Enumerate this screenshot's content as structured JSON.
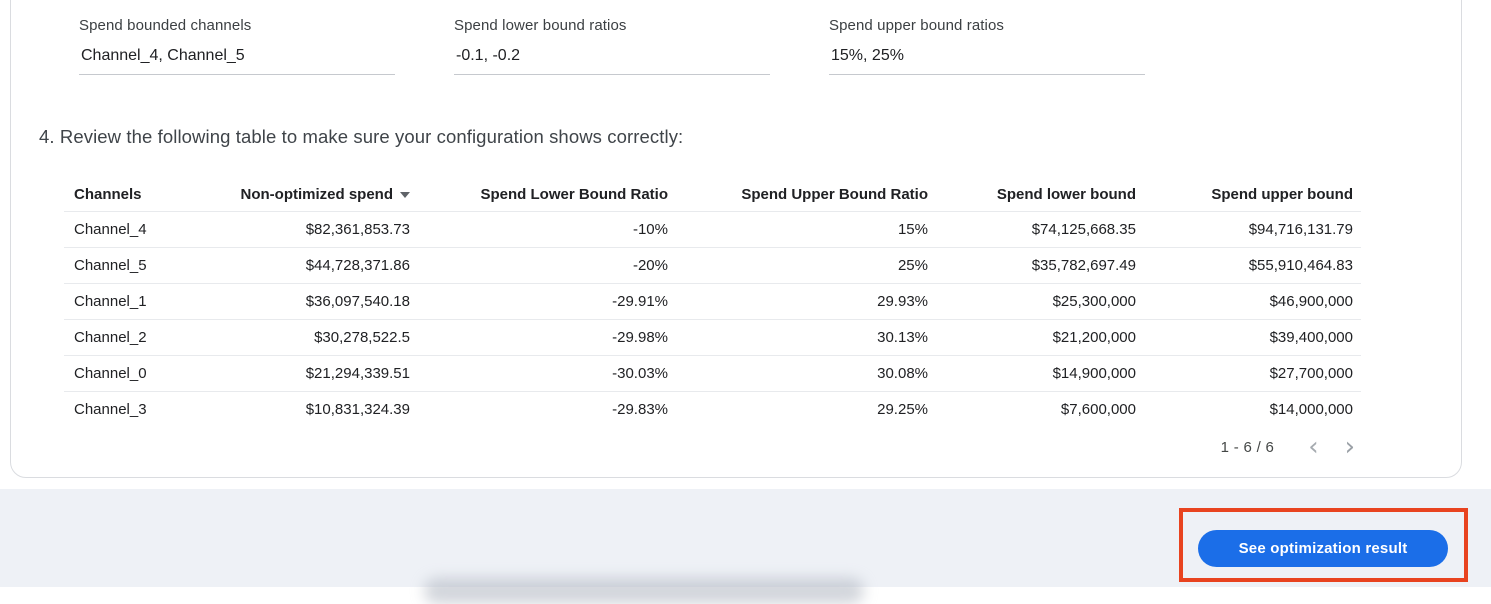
{
  "fields": [
    {
      "label": "Spend bounded channels",
      "value": "Channel_4, Channel_5"
    },
    {
      "label": "Spend lower bound ratios",
      "value": "-0.1, -0.2"
    },
    {
      "label": "Spend upper bound ratios",
      "value": "15%, 25%"
    }
  ],
  "step_text": "4. Review the following table to make sure your configuration shows correctly:",
  "table": {
    "columns": [
      "Channels",
      "Non-optimized spend",
      "Spend Lower Bound Ratio",
      "Spend Upper Bound Ratio",
      "Spend lower bound",
      "Spend upper bound"
    ],
    "sort": {
      "column": "Non-optimized spend",
      "direction": "descending",
      "icon": "triangle-down"
    },
    "rows": [
      [
        "Channel_4",
        "$82,361,853.73",
        "-10%",
        "15%",
        "$74,125,668.35",
        "$94,716,131.79"
      ],
      [
        "Channel_5",
        "$44,728,371.86",
        "-20%",
        "25%",
        "$35,782,697.49",
        "$55,910,464.83"
      ],
      [
        "Channel_1",
        "$36,097,540.18",
        "-29.91%",
        "29.93%",
        "$25,300,000",
        "$46,900,000"
      ],
      [
        "Channel_2",
        "$30,278,522.5",
        "-29.98%",
        "30.13%",
        "$21,200,000",
        "$39,400,000"
      ],
      [
        "Channel_0",
        "$21,294,339.51",
        "-30.03%",
        "30.08%",
        "$14,900,000",
        "$27,700,000"
      ],
      [
        "Channel_3",
        "$10,831,324.39",
        "-29.83%",
        "29.25%",
        "$7,600,000",
        "$14,000,000"
      ]
    ],
    "pagination": {
      "range_label": "1 - 6 / 6",
      "prev_icon": "‹",
      "next_icon": "›"
    }
  },
  "footer": {
    "cta_label": "See optimization result"
  },
  "colors": {
    "accent_blue": "#1b6ee8",
    "annotation_red": "#e8431f",
    "footer_background": "#eef1f6"
  }
}
